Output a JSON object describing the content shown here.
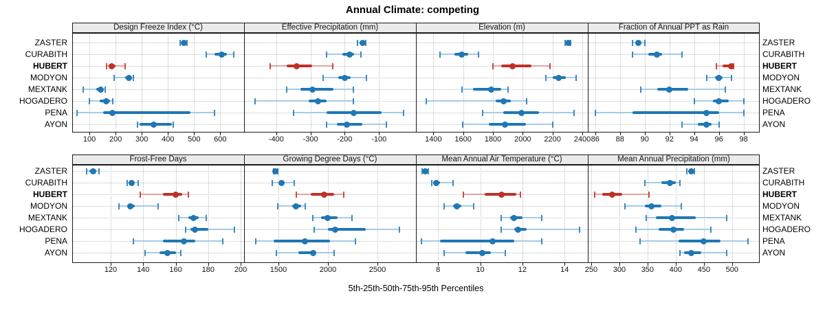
{
  "title": "Annual Climate: competing",
  "caption": "5th-25th-50th-75th-95th Percentiles",
  "stations": [
    "ZASTER",
    "CURABITH",
    "HUBERT",
    "MODYON",
    "MEXTANK",
    "HOGADERO",
    "PENA",
    "AYON"
  ],
  "highlight_station": "HUBERT",
  "colors": {
    "normal": "#1f77b4",
    "normal_light": "#a6cbe3",
    "highlight": "#bf3026",
    "highlight_light": "#e2a69f",
    "strip_bg": "#ebebeb",
    "border": "#1a1a1a",
    "grid": "#bdbdbd"
  },
  "chart_data": {
    "type": "dotplot-percentiles",
    "percentile_labels": [
      "5th",
      "25th",
      "50th",
      "75th",
      "95th"
    ],
    "legend": "5th-25th-50th-75th-95th Percentiles",
    "grid": "dotted",
    "panels": [
      {
        "title": "Design Freeze Index (°C)",
        "row": 0,
        "domain": [
          34,
          691
        ],
        "ticks": [
          100,
          200,
          300,
          400,
          500,
          600
        ],
        "tick_labels": [
          "100",
          "200",
          "300",
          "400",
          "500",
          "600"
        ],
        "values": {
          "ZASTER": [
            447,
            453,
            461,
            469,
            474
          ],
          "CURABITH": [
            546,
            577,
            606,
            626,
            651
          ],
          "HUBERT": [
            166,
            172,
            184,
            199,
            237
          ],
          "MODYON": [
            195,
            237,
            251,
            261,
            268
          ],
          "MEXTANK": [
            76,
            127,
            144,
            153,
            159
          ],
          "HOGADERO": [
            100,
            140,
            163,
            179,
            188
          ],
          "PENA": [
            52,
            153,
            187,
            485,
            578
          ],
          "AYON": [
            283,
            291,
            346,
            416,
            421
          ]
        }
      },
      {
        "title": "Effective Precipitation (mm)",
        "row": 0,
        "domain": [
          -494,
          8
        ],
        "ticks": [
          -400,
          -300,
          -200,
          -100
        ],
        "tick_labels": [
          "-400",
          "-300",
          "-200",
          "-100"
        ],
        "values": {
          "ZASTER": [
            -162,
            -155,
            -148,
            -143,
            -138
          ],
          "CURABITH": [
            -254,
            -206,
            -186,
            -173,
            -152
          ],
          "HUBERT": [
            -417,
            -370,
            -340,
            -295,
            -234
          ],
          "MODYON": [
            -263,
            -219,
            -200,
            -182,
            -136
          ],
          "MEXTANK": [
            -369,
            -330,
            -294,
            -233,
            -174
          ],
          "HOGADERO": [
            -462,
            -306,
            -278,
            -253,
            -174
          ],
          "PENA": [
            -350,
            -253,
            -173,
            -92,
            -28
          ],
          "AYON": [
            -253,
            -223,
            -194,
            -149,
            -79
          ]
        }
      },
      {
        "title": "Elevation (m)",
        "row": 0,
        "domain": [
          1283,
          2437
        ],
        "ticks": [
          1400,
          1600,
          1800,
          2000,
          2200,
          2400
        ],
        "tick_labels": [
          "1400",
          "1600",
          "1800",
          "2000",
          "2200",
          "2400"
        ],
        "values": {
          "ZASTER": [
            2285,
            2295,
            2305,
            2313,
            2320
          ],
          "CURABITH": [
            1445,
            1540,
            1590,
            1635,
            1705
          ],
          "HUBERT": [
            1800,
            1855,
            1930,
            2060,
            2185
          ],
          "MODYON": [
            2155,
            2200,
            2240,
            2290,
            2360
          ],
          "MEXTANK": [
            1590,
            1665,
            1790,
            1855,
            1900
          ],
          "HOGADERO": [
            1350,
            1820,
            1870,
            1920,
            2025
          ],
          "PENA": [
            1730,
            1870,
            1990,
            2110,
            2345
          ],
          "AYON": [
            1595,
            1770,
            1880,
            2020,
            2200
          ]
        }
      },
      {
        "title": "Fraction of Annual PPT as Rain",
        "row": 0,
        "domain": [
          85.4,
          99.3
        ],
        "ticks": [
          86,
          88,
          90,
          92,
          94,
          96,
          98
        ],
        "tick_labels": [
          "86",
          "88",
          "90",
          "92",
          "94",
          "96",
          "98"
        ],
        "values": {
          "ZASTER": [
            89.0,
            89.3,
            89.5,
            89.7,
            90.0
          ],
          "CURABITH": [
            89.0,
            90.3,
            91.0,
            91.4,
            93.0
          ],
          "HUBERT": [
            95.8,
            96.3,
            97.0,
            97.1,
            97.2
          ],
          "MODYON": [
            95.0,
            95.7,
            96.0,
            96.3,
            97.0
          ],
          "MEXTANK": [
            89.7,
            91.0,
            92.0,
            93.5,
            96.5
          ],
          "HOGADERO": [
            94.0,
            95.5,
            96.0,
            96.8,
            98.0
          ],
          "PENA": [
            86.0,
            89.0,
            95.0,
            96.0,
            98.0
          ],
          "AYON": [
            93.0,
            94.3,
            95.0,
            95.4,
            96.0
          ]
        }
      },
      {
        "title": "Frost-Free Days",
        "row": 1,
        "domain": [
          96.3,
          202.1
        ],
        "ticks": [
          120,
          140,
          160,
          180,
          200
        ],
        "tick_labels": [
          "120",
          "140",
          "160",
          "180",
          "200"
        ],
        "values": {
          "ZASTER": [
            105,
            107,
            109,
            111,
            113
          ],
          "CURABITH": [
            130,
            131.5,
            133,
            134,
            137
          ],
          "HUBERT": [
            138,
            152,
            160,
            164,
            168
          ],
          "MODYON": [
            125,
            130,
            132,
            135,
            149
          ],
          "MEXTANK": [
            162,
            168,
            171,
            174,
            179
          ],
          "HOGADERO": [
            166,
            169,
            172,
            180,
            196
          ],
          "PENA": [
            134,
            152,
            165,
            172,
            189
          ],
          "AYON": [
            141,
            150,
            155,
            160,
            163
          ]
        }
      },
      {
        "title": "Growing Degree Days (°C)",
        "row": 1,
        "domain": [
          1153,
          2889
        ],
        "ticks": [
          1500,
          2000,
          2500
        ],
        "tick_labels": [
          "1500",
          "2000",
          "2500"
        ],
        "values": {
          "ZASTER": [
            1455,
            1465,
            1472,
            1480,
            1490
          ],
          "CURABITH": [
            1440,
            1505,
            1530,
            1560,
            1660
          ],
          "HUBERT": [
            1680,
            1830,
            1960,
            2060,
            2160
          ],
          "MODYON": [
            1490,
            1640,
            1680,
            1730,
            1770
          ],
          "MEXTANK": [
            1850,
            1930,
            2000,
            2100,
            2240
          ],
          "HOGADERO": [
            1860,
            2000,
            2070,
            2380,
            2720
          ],
          "PENA": [
            1270,
            1450,
            1770,
            2020,
            2280
          ],
          "AYON": [
            1480,
            1700,
            1850,
            1880,
            2060
          ]
        }
      },
      {
        "title": "Mean Annual Air Temperature (°C)",
        "row": 1,
        "domain": [
          6.95,
          15.1
        ],
        "ticks": [
          8,
          10,
          12,
          14
        ],
        "tick_labels": [
          "8",
          "10",
          "12",
          "14"
        ],
        "values": {
          "ZASTER": [
            7.25,
            7.35,
            7.4,
            7.45,
            7.55
          ],
          "CURABITH": [
            7.7,
            7.8,
            7.9,
            8.1,
            8.7
          ],
          "HUBERT": [
            9.2,
            10.2,
            11.0,
            11.7,
            11.9
          ],
          "MODYON": [
            8.3,
            8.7,
            8.9,
            9.1,
            9.7
          ],
          "MEXTANK": [
            11.0,
            11.4,
            11.6,
            12.0,
            12.9
          ],
          "HOGADERO": [
            11.0,
            11.6,
            11.8,
            12.2,
            14.7
          ],
          "PENA": [
            7.2,
            8.1,
            10.6,
            11.6,
            12.9
          ],
          "AYON": [
            8.3,
            9.3,
            10.1,
            10.5,
            11.2
          ]
        }
      },
      {
        "title": "Mean Annual Precipitation (mm)",
        "row": 1,
        "domain": [
          244,
          549
        ],
        "ticks": [
          250,
          300,
          350,
          400,
          450,
          500
        ],
        "tick_labels": [
          "250",
          "300",
          "350",
          "400",
          "450",
          "500"
        ],
        "values": {
          "ZASTER": [
            420,
            424,
            427,
            430,
            433
          ],
          "CURABITH": [
            345,
            375,
            390,
            400,
            408
          ],
          "HUBERT": [
            256,
            270,
            287,
            305,
            352
          ],
          "MODYON": [
            310,
            345,
            357,
            375,
            410
          ],
          "MEXTANK": [
            348,
            365,
            393,
            435,
            490
          ],
          "HOGADERO": [
            330,
            370,
            396,
            415,
            462
          ],
          "PENA": [
            337,
            405,
            450,
            480,
            528
          ],
          "AYON": [
            408,
            415,
            428,
            445,
            490
          ]
        }
      }
    ]
  }
}
